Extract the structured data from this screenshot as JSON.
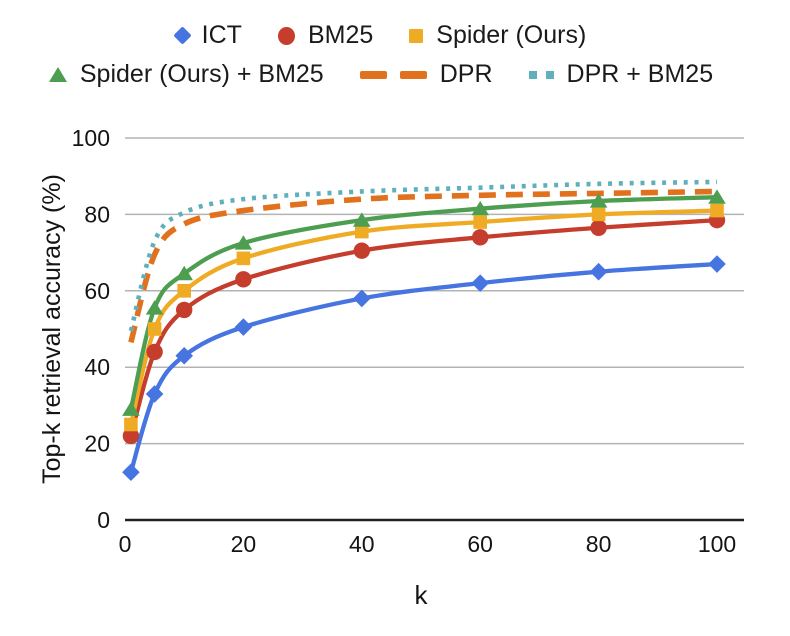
{
  "chart_data": {
    "type": "line",
    "title": "",
    "xlabel": "k",
    "ylabel": "Top-k retrieval accuracy (%)",
    "x": [
      1,
      5,
      10,
      20,
      40,
      60,
      80,
      100
    ],
    "x_ticks": [
      0,
      20,
      40,
      60,
      80,
      100
    ],
    "y_ticks": [
      0,
      20,
      40,
      60,
      80,
      100
    ],
    "xlim": [
      0,
      105
    ],
    "ylim": [
      0,
      100
    ],
    "grid": "horizontal-only",
    "legend_position": "top",
    "legend_rows": [
      [
        "ICT",
        "BM25",
        "Spider (Ours)"
      ],
      [
        "Spider (Ours) + BM25",
        "DPR",
        "DPR + BM25"
      ]
    ],
    "series": [
      {
        "name": "ICT",
        "color": "#4674e0",
        "marker": "diamond",
        "line": "solid",
        "values": [
          12.5,
          33,
          43,
          50.5,
          58,
          62,
          65,
          67
        ]
      },
      {
        "name": "BM25",
        "color": "#c53d2c",
        "marker": "circle",
        "line": "solid",
        "values": [
          22,
          44,
          55,
          63,
          70.5,
          74,
          76.5,
          78.5
        ]
      },
      {
        "name": "Spider (Ours)",
        "color": "#f0ab25",
        "marker": "square",
        "line": "solid",
        "values": [
          25,
          50,
          60,
          68.5,
          75.5,
          78,
          80,
          81
        ]
      },
      {
        "name": "Spider (Ours) + BM25",
        "color": "#4d9e50",
        "marker": "triangle",
        "line": "solid",
        "values": [
          29,
          55.5,
          64.5,
          72.5,
          78.5,
          81.5,
          83.5,
          84.5
        ]
      },
      {
        "name": "DPR",
        "color": "#e2711d",
        "marker": "none",
        "line": "dashed",
        "values": [
          46.5,
          69.5,
          77.5,
          81,
          84,
          85,
          85.5,
          86
        ]
      },
      {
        "name": "DPR + BM25",
        "color": "#5fb0bd",
        "marker": "none",
        "line": "dotted",
        "values": [
          49.5,
          73,
          80.5,
          84,
          86,
          87,
          88,
          88.5
        ]
      }
    ],
    "axis_color": "#212121",
    "grid_color": "#b3b3b3",
    "text_color": "#141414"
  }
}
